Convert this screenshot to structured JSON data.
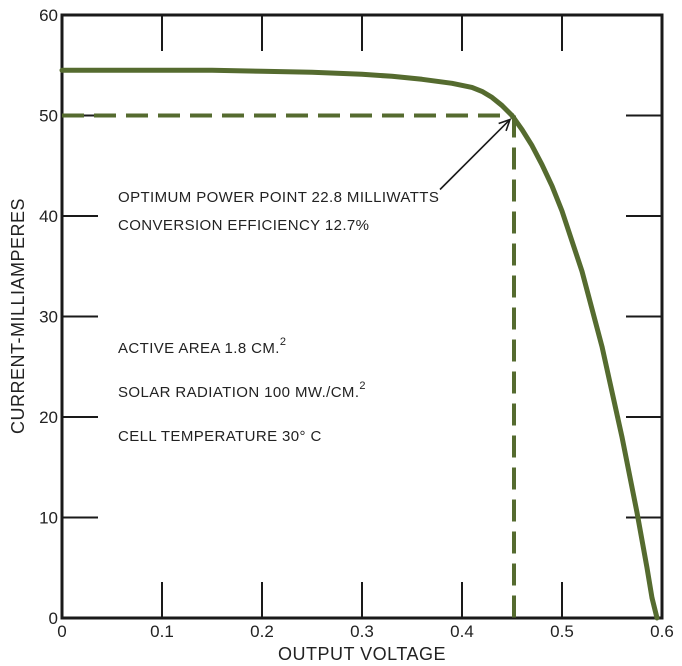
{
  "chart_data": {
    "type": "line",
    "title": "",
    "xlabel": "OUTPUT VOLTAGE",
    "ylabel": "CURRENT-MILLIAMPERES",
    "xlim": [
      0,
      0.6
    ],
    "ylim": [
      0,
      60
    ],
    "x_ticks": [
      "0",
      "0.1",
      "0.2",
      "0.3",
      "0.4",
      "0.5",
      "0.6"
    ],
    "y_ticks": [
      "0",
      "10",
      "20",
      "30",
      "40",
      "50",
      "60"
    ],
    "grid": false,
    "line_color": "#556b2f",
    "series": [
      {
        "x": [
          0,
          0.05,
          0.1,
          0.15,
          0.2,
          0.25,
          0.3,
          0.33,
          0.36,
          0.39,
          0.41,
          0.42,
          0.43,
          0.44,
          0.45,
          0.46,
          0.47,
          0.48,
          0.49,
          0.5,
          0.52,
          0.54,
          0.56,
          0.575,
          0.585,
          0.59,
          0.595
        ],
        "y": [
          54.5,
          54.5,
          54.5,
          54.5,
          54.4,
          54.3,
          54.1,
          53.9,
          53.6,
          53.2,
          52.8,
          52.4,
          51.8,
          51.0,
          50.0,
          48.6,
          47.0,
          45.1,
          43.0,
          40.5,
          34.5,
          27.0,
          18.0,
          10.5,
          5.0,
          2.0,
          0
        ]
      }
    ],
    "optimum_point": {
      "x": 0.452,
      "y": 50
    },
    "annotations": [
      {
        "text": "OPTIMUM POWER POINT 22.8 MILLIWATTS"
      },
      {
        "text": "CONVERSION EFFICIENCY 12.7%"
      },
      {
        "text": "ACTIVE AREA 1.8 CM.",
        "superscript": "2"
      },
      {
        "text": "SOLAR RADIATION 100 MW./CM.",
        "superscript": "2"
      },
      {
        "text": "CELL TEMPERATURE 30° C"
      }
    ]
  }
}
